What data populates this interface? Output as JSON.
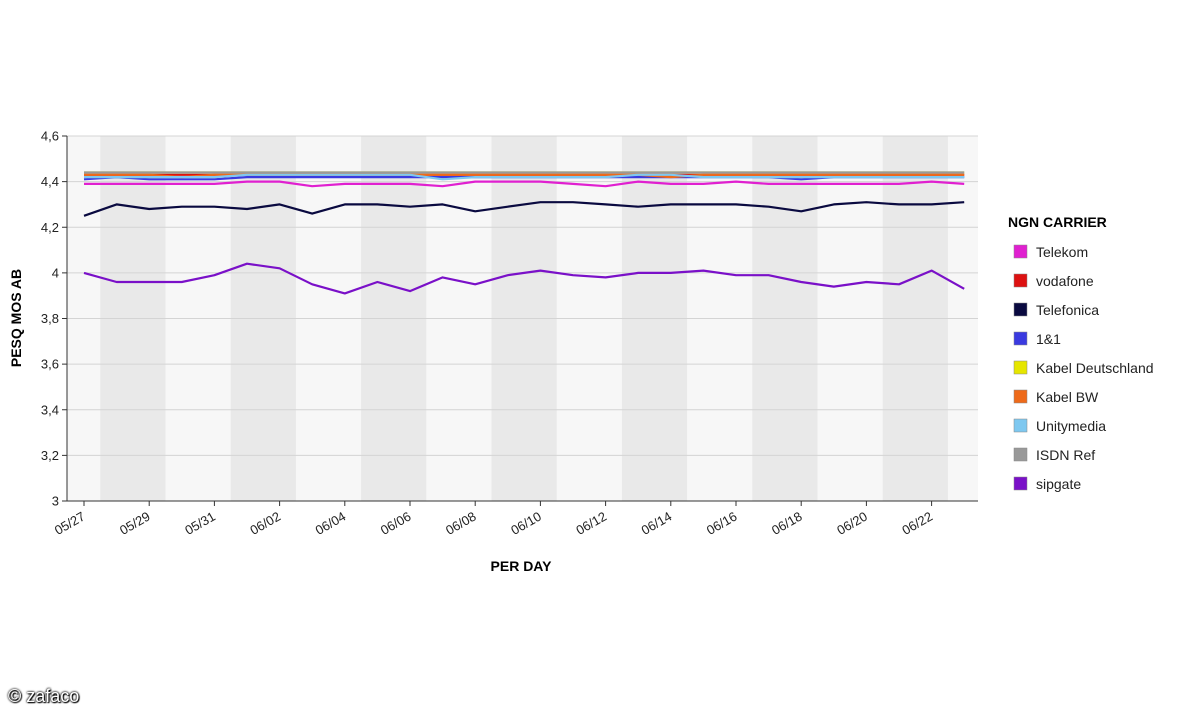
{
  "chart_data": {
    "type": "line",
    "xlabel": "PER DAY",
    "ylabel": "PESQ MOS AB",
    "ylim": [
      3,
      4.6
    ],
    "yticks": [
      "3",
      "3,2",
      "3,4",
      "3,6",
      "3,8",
      "4",
      "4,2",
      "4,4",
      "4,6"
    ],
    "ytick_values": [
      3,
      3.2,
      3.4,
      3.6,
      3.8,
      4,
      4.2,
      4.4,
      4.6
    ],
    "x": [
      "05/27",
      "05/28",
      "05/29",
      "05/30",
      "05/31",
      "06/01",
      "06/02",
      "06/03",
      "06/04",
      "06/05",
      "06/06",
      "06/07",
      "06/08",
      "06/09",
      "06/10",
      "06/11",
      "06/12",
      "06/13",
      "06/14",
      "06/15",
      "06/16",
      "06/17",
      "06/18",
      "06/19",
      "06/20",
      "06/21",
      "06/22",
      "06/23"
    ],
    "xtick_labels": [
      "05/27",
      "05/29",
      "05/31",
      "06/02",
      "06/04",
      "06/06",
      "06/08",
      "06/10",
      "06/12",
      "06/14",
      "06/16",
      "06/18",
      "06/20",
      "06/22"
    ],
    "grid": "horizontal",
    "legend_position": "right",
    "legend_title": "NGN CARRIER",
    "series": [
      {
        "name": "Telekom",
        "color": "#e020d0",
        "values": [
          4.39,
          4.39,
          4.39,
          4.39,
          4.39,
          4.4,
          4.4,
          4.38,
          4.39,
          4.39,
          4.39,
          4.38,
          4.4,
          4.4,
          4.4,
          4.39,
          4.38,
          4.4,
          4.39,
          4.39,
          4.4,
          4.39,
          4.39,
          4.39,
          4.39,
          4.39,
          4.4,
          4.39
        ]
      },
      {
        "name": "vodafone",
        "color": "#dd1111",
        "values": [
          4.43,
          4.43,
          4.43,
          4.43,
          4.43,
          4.43,
          4.43,
          4.43,
          4.43,
          4.43,
          4.43,
          4.43,
          4.43,
          4.43,
          4.43,
          4.43,
          4.43,
          4.43,
          4.43,
          4.43,
          4.43,
          4.43,
          4.43,
          4.43,
          4.43,
          4.43,
          4.43,
          4.43
        ]
      },
      {
        "name": "Telefonica",
        "color": "#0a0a40",
        "values": [
          4.25,
          4.3,
          4.28,
          4.29,
          4.29,
          4.28,
          4.3,
          4.26,
          4.3,
          4.3,
          4.29,
          4.3,
          4.27,
          4.29,
          4.31,
          4.31,
          4.3,
          4.29,
          4.3,
          4.3,
          4.3,
          4.29,
          4.27,
          4.3,
          4.31,
          4.3,
          4.3,
          4.31
        ]
      },
      {
        "name": "1&1",
        "color": "#3a3ae0",
        "values": [
          4.41,
          4.42,
          4.41,
          4.41,
          4.41,
          4.42,
          4.42,
          4.42,
          4.42,
          4.42,
          4.42,
          4.42,
          4.42,
          4.42,
          4.42,
          4.42,
          4.42,
          4.42,
          4.42,
          4.42,
          4.42,
          4.42,
          4.41,
          4.42,
          4.42,
          4.42,
          4.42,
          4.42
        ]
      },
      {
        "name": "Kabel Deutschland",
        "color": "#e6e600",
        "values": [
          4.44,
          4.44,
          4.44,
          4.44,
          4.44,
          4.44,
          4.44,
          4.44,
          4.44,
          4.44,
          4.44,
          4.44,
          4.44,
          4.44,
          4.44,
          4.44,
          4.44,
          4.44,
          4.44,
          4.44,
          4.44,
          4.44,
          4.44,
          4.44,
          4.44,
          4.44,
          4.44,
          4.44
        ]
      },
      {
        "name": "Kabel BW",
        "color": "#ee6a1a",
        "values": [
          4.43,
          4.43,
          4.43,
          4.42,
          4.43,
          4.43,
          4.43,
          4.43,
          4.43,
          4.43,
          4.43,
          4.43,
          4.43,
          4.43,
          4.43,
          4.43,
          4.43,
          4.43,
          4.42,
          4.43,
          4.43,
          4.43,
          4.43,
          4.43,
          4.43,
          4.43,
          4.43,
          4.43
        ]
      },
      {
        "name": "Unitymedia",
        "color": "#7ec8f0",
        "values": [
          4.42,
          4.42,
          4.42,
          4.42,
          4.42,
          4.43,
          4.43,
          4.43,
          4.43,
          4.43,
          4.43,
          4.41,
          4.42,
          4.42,
          4.42,
          4.42,
          4.42,
          4.43,
          4.43,
          4.42,
          4.42,
          4.42,
          4.42,
          4.42,
          4.42,
          4.42,
          4.42,
          4.42
        ]
      },
      {
        "name": "ISDN Ref",
        "color": "#999999",
        "values": [
          4.44,
          4.44,
          4.44,
          4.44,
          4.44,
          4.44,
          4.44,
          4.44,
          4.44,
          4.44,
          4.44,
          4.44,
          4.44,
          4.44,
          4.44,
          4.44,
          4.44,
          4.44,
          4.44,
          4.44,
          4.44,
          4.44,
          4.44,
          4.44,
          4.44,
          4.44,
          4.44,
          4.44
        ]
      },
      {
        "name": "sipgate",
        "color": "#7a10c8",
        "values": [
          4.0,
          3.96,
          3.96,
          3.96,
          3.99,
          4.04,
          4.02,
          3.95,
          3.91,
          3.96,
          3.92,
          3.98,
          3.95,
          3.99,
          4.01,
          3.99,
          3.98,
          4.0,
          4.0,
          4.01,
          3.99,
          3.99,
          3.96,
          3.94,
          3.96,
          3.95,
          4.01,
          3.93
        ]
      }
    ]
  },
  "watermark": "© zafaco"
}
